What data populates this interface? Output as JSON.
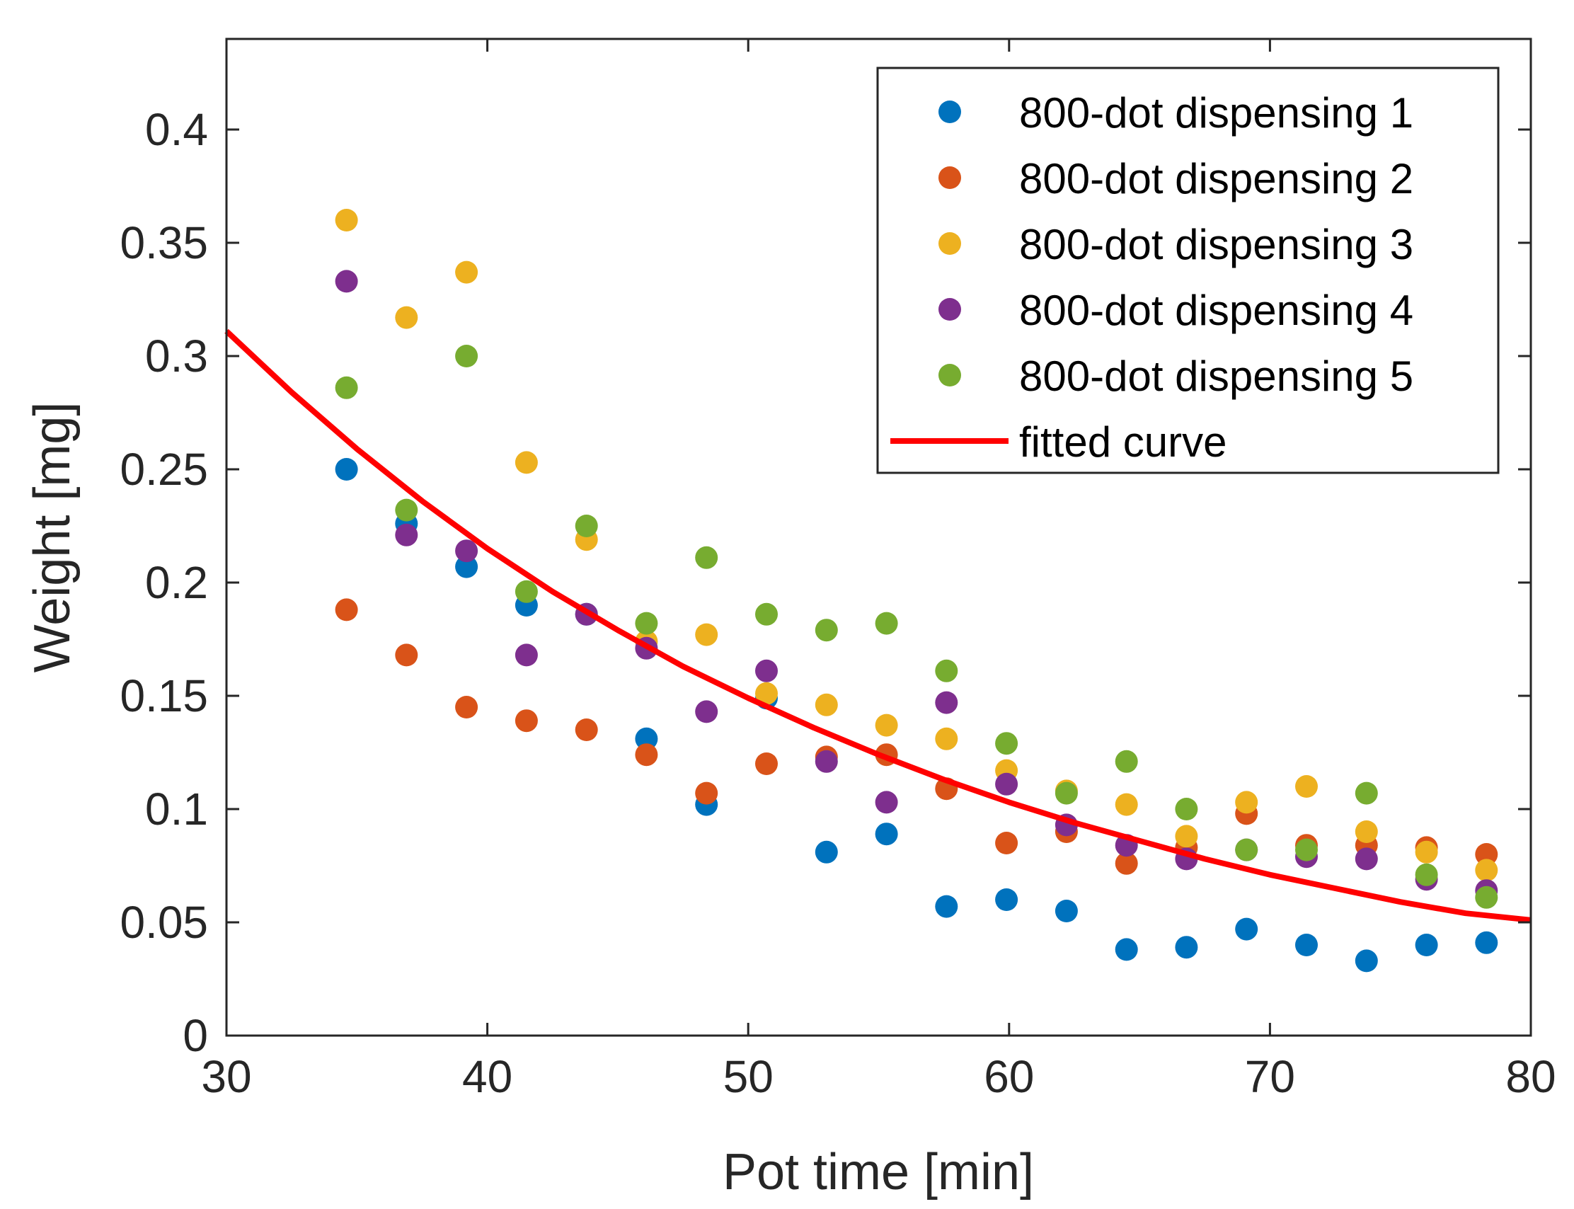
{
  "chart_data": {
    "type": "scatter",
    "title": "",
    "xlabel": "Pot time [min]",
    "ylabel": "Weight [mg]",
    "xlim": [
      30,
      80
    ],
    "ylim": [
      0,
      0.44
    ],
    "xticks": [
      30,
      40,
      50,
      60,
      70,
      80
    ],
    "xtick_labels": [
      "30",
      "40",
      "50",
      "60",
      "70",
      "80"
    ],
    "yticks": [
      0,
      0.05,
      0.1,
      0.15,
      0.2,
      0.25,
      0.3,
      0.35,
      0.4
    ],
    "ytick_labels": [
      "0",
      "0.05",
      "0.1",
      "0.15",
      "0.2",
      "0.25",
      "0.3",
      "0.35",
      "0.4"
    ],
    "grid": false,
    "legend_position": "top-right",
    "x": [
      34.6,
      36.9,
      39.2,
      41.5,
      43.8,
      46.1,
      48.4,
      50.7,
      53.0,
      55.3,
      57.6,
      59.9,
      62.2,
      64.5,
      66.8,
      69.1,
      71.4,
      73.7,
      76.0,
      78.3
    ],
    "series": [
      {
        "name": "800-dot dispensing 1",
        "color": "#0072BD",
        "values": [
          0.25,
          0.226,
          0.207,
          0.19,
          0.186,
          0.131,
          0.102,
          0.149,
          0.081,
          0.089,
          0.057,
          0.06,
          0.055,
          0.038,
          0.039,
          0.047,
          0.04,
          0.033,
          0.04,
          0.041
        ]
      },
      {
        "name": "800-dot dispensing 2",
        "color": "#D95319",
        "values": [
          0.188,
          0.168,
          0.145,
          0.139,
          0.135,
          0.124,
          0.107,
          0.12,
          0.123,
          0.124,
          0.109,
          0.085,
          0.09,
          0.076,
          0.083,
          0.098,
          0.084,
          0.084,
          0.083,
          0.08
        ]
      },
      {
        "name": "800-dot dispensing 3",
        "color": "#EDB120",
        "values": [
          0.36,
          0.317,
          0.337,
          0.253,
          0.219,
          0.174,
          0.177,
          0.151,
          0.146,
          0.137,
          0.131,
          0.117,
          0.108,
          0.102,
          0.088,
          0.103,
          0.11,
          0.09,
          0.081,
          0.073
        ]
      },
      {
        "name": "800-dot dispensing 4",
        "color": "#7E2F8E",
        "values": [
          0.333,
          0.221,
          0.214,
          0.168,
          0.186,
          0.171,
          0.143,
          0.161,
          0.121,
          0.103,
          0.147,
          0.111,
          0.093,
          0.084,
          0.078,
          0.082,
          0.079,
          0.078,
          0.069,
          0.064
        ]
      },
      {
        "name": "800-dot dispensing 5",
        "color": "#77AC30",
        "values": [
          0.286,
          0.232,
          0.3,
          0.196,
          0.225,
          0.182,
          0.211,
          0.186,
          0.179,
          0.182,
          0.161,
          0.129,
          0.107,
          0.121,
          0.1,
          0.082,
          0.082,
          0.107,
          0.071,
          0.061
        ]
      }
    ],
    "fitted_curve": {
      "name": "fitted curve",
      "color": "#FF0000",
      "x": [
        30,
        32.5,
        35,
        37.5,
        40,
        42.5,
        45,
        47.5,
        50,
        52.5,
        55,
        57.5,
        60,
        62.5,
        65,
        67.5,
        70,
        72.5,
        75,
        77.5,
        80
      ],
      "y": [
        0.311,
        0.284,
        0.259,
        0.236,
        0.215,
        0.196,
        0.179,
        0.163,
        0.149,
        0.136,
        0.124,
        0.113,
        0.103,
        0.094,
        0.086,
        0.078,
        0.071,
        0.065,
        0.059,
        0.054,
        0.051
      ]
    }
  }
}
